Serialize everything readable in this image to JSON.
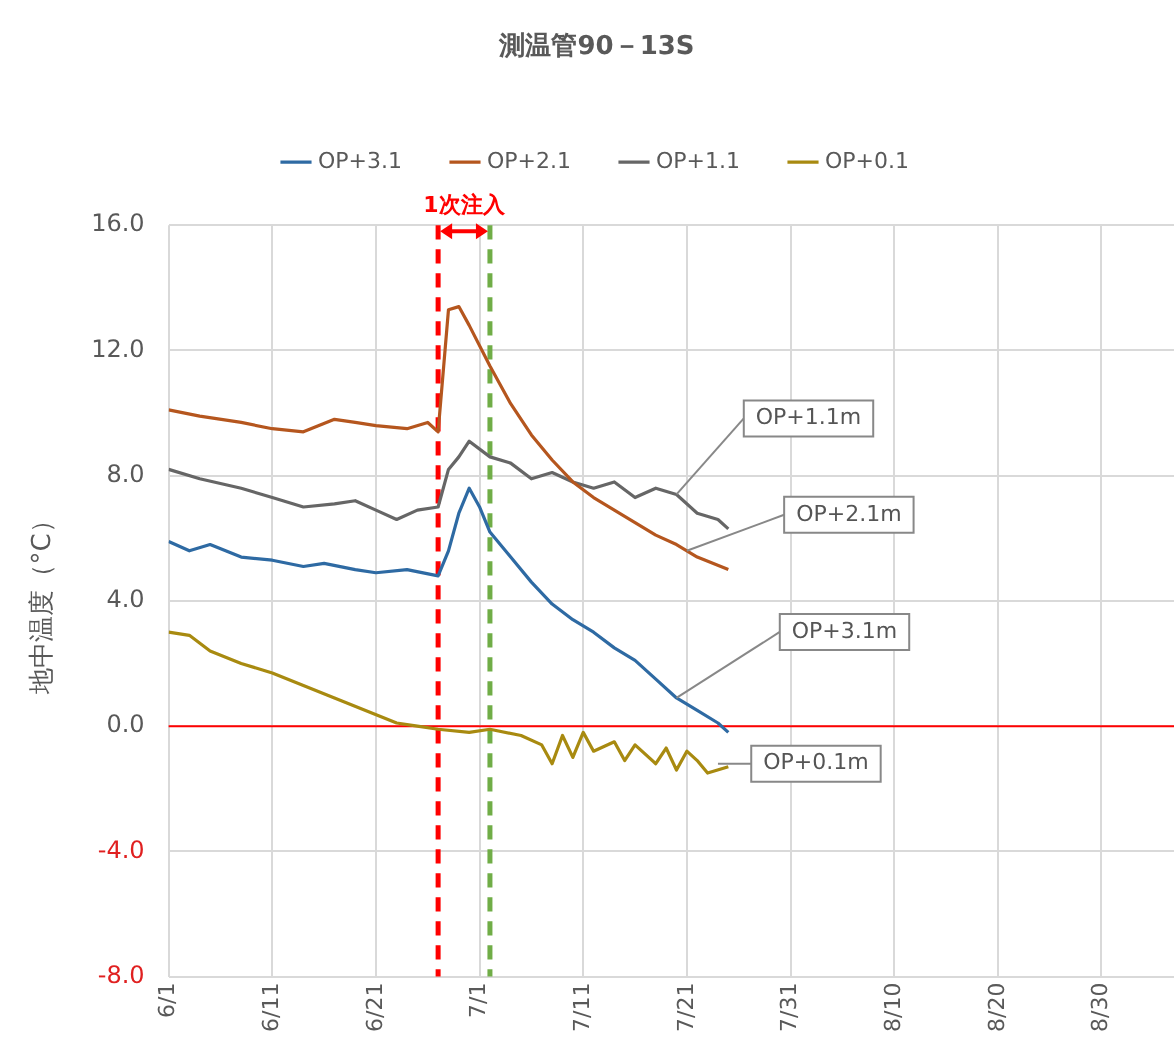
{
  "chart_data": {
    "type": "line",
    "title": "測温管90－13S",
    "ylabel": "地中温度（°C）",
    "annotations": [
      "1次注入",
      {
        "text": "OP+1.1m",
        "x": "--07-20",
        "y": 7.4
      },
      {
        "text": "OP+2.1m",
        "x": "--07-21",
        "y": 5.6
      },
      {
        "text": "OP+3.1m",
        "x": "--07-20",
        "y": 0.9
      },
      {
        "text": "OP+0.1m",
        "x": "--07-24",
        "y": -1.2
      }
    ],
    "series": [
      {
        "name": "OP+3.1",
        "color": "#2e6aa3",
        "x": [
          "--06-01",
          "--06-03",
          "--06-05",
          "--06-08",
          "--06-11",
          "--06-14",
          "--06-16",
          "--06-19",
          "--06-21",
          "--06-24",
          "--06-27",
          "--06-28",
          "--06-29",
          "--06-30",
          "--07-01",
          "--07-02",
          "--07-04",
          "--07-06",
          "--07-08",
          "--07-10",
          "--07-12",
          "--07-14",
          "--07-16",
          "--07-18",
          "--07-20",
          "--07-22",
          "--07-24",
          "--07-25"
        ],
        "values": [
          5.9,
          5.6,
          5.8,
          5.4,
          5.3,
          5.1,
          5.2,
          5.0,
          4.9,
          5.0,
          4.8,
          5.6,
          6.8,
          7.6,
          7.0,
          6.2,
          5.4,
          4.6,
          3.9,
          3.4,
          3.0,
          2.5,
          2.1,
          1.5,
          0.9,
          0.5,
          0.1,
          -0.2
        ]
      },
      {
        "name": "OP+2.1",
        "color": "#b5561e",
        "x": [
          "--06-01",
          "--06-04",
          "--06-08",
          "--06-11",
          "--06-14",
          "--06-17",
          "--06-19",
          "--06-21",
          "--06-24",
          "--06-26",
          "--06-27",
          "--06-28",
          "--06-29",
          "--06-30",
          "--07-02",
          "--07-04",
          "--07-06",
          "--07-08",
          "--07-10",
          "--07-12",
          "--07-14",
          "--07-16",
          "--07-18",
          "--07-20",
          "--07-22",
          "--07-25"
        ],
        "values": [
          10.1,
          9.9,
          9.7,
          9.5,
          9.4,
          9.8,
          9.7,
          9.6,
          9.5,
          9.7,
          9.4,
          13.3,
          13.4,
          12.8,
          11.5,
          10.3,
          9.3,
          8.5,
          7.8,
          7.3,
          6.9,
          6.5,
          6.1,
          5.8,
          5.4,
          5.0
        ]
      },
      {
        "name": "OP+1.1",
        "color": "#666666",
        "x": [
          "--06-01",
          "--06-04",
          "--06-08",
          "--06-11",
          "--06-14",
          "--06-17",
          "--06-19",
          "--06-21",
          "--06-23",
          "--06-25",
          "--06-27",
          "--06-28",
          "--06-29",
          "--06-30",
          "--07-02",
          "--07-04",
          "--07-06",
          "--07-08",
          "--07-10",
          "--07-12",
          "--07-14",
          "--07-16",
          "--07-18",
          "--07-20",
          "--07-22",
          "--07-24",
          "--07-25"
        ],
        "values": [
          8.2,
          7.9,
          7.6,
          7.3,
          7.0,
          7.1,
          7.2,
          6.9,
          6.6,
          6.9,
          7.0,
          8.2,
          8.6,
          9.1,
          8.6,
          8.4,
          7.9,
          8.1,
          7.8,
          7.6,
          7.8,
          7.3,
          7.6,
          7.4,
          6.8,
          6.6,
          6.3
        ]
      },
      {
        "name": "OP+0.1",
        "color": "#a88a10",
        "x": [
          "--06-01",
          "--06-03",
          "--06-05",
          "--06-08",
          "--06-11",
          "--06-14",
          "--06-17",
          "--06-20",
          "--06-23",
          "--06-25",
          "--06-27",
          "--06-30",
          "--07-02",
          "--07-05",
          "--07-07",
          "--07-08",
          "--07-09",
          "--07-10",
          "--07-11",
          "--07-12",
          "--07-14",
          "--07-15",
          "--07-16",
          "--07-18",
          "--07-19",
          "--07-20",
          "--07-21",
          "--07-22",
          "--07-23",
          "--07-25"
        ],
        "values": [
          3.0,
          2.9,
          2.4,
          2.0,
          1.7,
          1.3,
          0.9,
          0.5,
          0.1,
          0.0,
          -0.1,
          -0.2,
          -0.1,
          -0.3,
          -0.6,
          -1.2,
          -0.3,
          -1.0,
          -0.2,
          -0.8,
          -0.5,
          -1.1,
          -0.6,
          -1.2,
          -0.7,
          -1.4,
          -0.8,
          -1.1,
          -1.5,
          -1.3
        ]
      }
    ],
    "xlim": [
      "--06-01",
      "--09-06"
    ],
    "xticks": [
      {
        "value": "--06-01",
        "label": "6/1"
      },
      {
        "value": "--06-11",
        "label": "6/11"
      },
      {
        "value": "--06-21",
        "label": "6/21"
      },
      {
        "value": "--07-01",
        "label": "7/1"
      },
      {
        "value": "--07-11",
        "label": "7/11"
      },
      {
        "value": "--07-21",
        "label": "7/21"
      },
      {
        "value": "--07-31",
        "label": "7/31"
      },
      {
        "value": "--08-10",
        "label": "8/10"
      },
      {
        "value": "--08-20",
        "label": "8/20"
      },
      {
        "value": "--08-30",
        "label": "8/30"
      }
    ],
    "ylim": [
      -8,
      16
    ],
    "yticks": [
      {
        "value": -8,
        "label": "-8.0"
      },
      {
        "value": -4,
        "label": "-4.0"
      },
      {
        "value": 0,
        "label": "0.0"
      },
      {
        "value": 4,
        "label": "4.0"
      },
      {
        "value": 8,
        "label": "8.0"
      },
      {
        "value": 12,
        "label": "12.0"
      },
      {
        "value": 16,
        "label": "16.0"
      }
    ],
    "ref_lines": [
      {
        "axis": "x",
        "value": "--06-27",
        "color": "#ff0000",
        "line_style": "dashed"
      },
      {
        "axis": "x",
        "value": "--07-02",
        "color": "#70ad47",
        "line_style": "dashed"
      },
      {
        "axis": "y",
        "value": 0,
        "color": "#ff0000",
        "line_style": "solid"
      }
    ],
    "grid": true,
    "legend": "top",
    "marker": "none",
    "line_style": "solid"
  }
}
